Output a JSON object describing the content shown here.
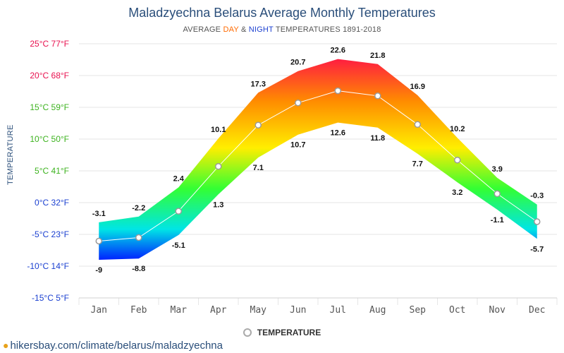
{
  "title": "Maladzyechna Belarus Average Monthly Temperatures",
  "subtitle": {
    "prefix": "AVERAGE ",
    "day": "DAY",
    "amp": " & ",
    "night": "NIGHT",
    "suffix": " TEMPERATURES 1891-2018"
  },
  "legend_label": "TEMPERATURE",
  "source": "hikersbay.com/climate/belarus/maladzyechna",
  "chart_data": {
    "type": "area",
    "title": "Maladzyechna Belarus Average Monthly Temperatures",
    "ylabel": "TEMPERATURE",
    "ylim": [
      -15,
      25
    ],
    "grid": true,
    "categories": [
      "Jan",
      "Feb",
      "Mar",
      "Apr",
      "May",
      "Jun",
      "Jul",
      "Aug",
      "Sep",
      "Oct",
      "Nov",
      "Dec"
    ],
    "yticks": [
      {
        "value": 25,
        "label": "25°C 77°F",
        "color": "#e8114f"
      },
      {
        "value": 20,
        "label": "20°C 68°F",
        "color": "#e8114f"
      },
      {
        "value": 15,
        "label": "15°C 59°F",
        "color": "#3db31f"
      },
      {
        "value": 10,
        "label": "10°C 50°F",
        "color": "#3db31f"
      },
      {
        "value": 5,
        "label": "5°C 41°F",
        "color": "#3db31f"
      },
      {
        "value": 0,
        "label": "0°C 32°F",
        "color": "#1a3fd0"
      },
      {
        "value": -5,
        "label": "-5°C 23°F",
        "color": "#1a3fd0"
      },
      {
        "value": -10,
        "label": "-10°C 14°F",
        "color": "#1a3fd0"
      },
      {
        "value": -15,
        "label": "-15°C 5°F",
        "color": "#1a3fd0"
      }
    ],
    "series": [
      {
        "name": "DAY",
        "values": [
          -3.1,
          -2.2,
          2.4,
          10.1,
          17.3,
          20.7,
          22.6,
          21.8,
          16.9,
          10.2,
          3.9,
          -0.3
        ]
      },
      {
        "name": "NIGHT",
        "values": [
          -9,
          -8.8,
          -5.1,
          1.3,
          7.1,
          10.7,
          12.6,
          11.8,
          7.7,
          3.2,
          -1.1,
          -5.7
        ]
      },
      {
        "name": "TEMPERATURE",
        "values": [
          -6.05,
          -5.5,
          -1.35,
          5.7,
          12.2,
          15.7,
          17.6,
          16.8,
          12.3,
          6.7,
          1.4,
          -3.0
        ]
      }
    ],
    "colors": {
      "hot": "#ff1744",
      "warm": "#ff8c00",
      "mild": "#ffee00",
      "cool": "#33ff33",
      "cold": "#00e5e5",
      "freezing": "#0022ff",
      "mean_line": "#ffffff",
      "grid": "#e6e6e6"
    }
  }
}
